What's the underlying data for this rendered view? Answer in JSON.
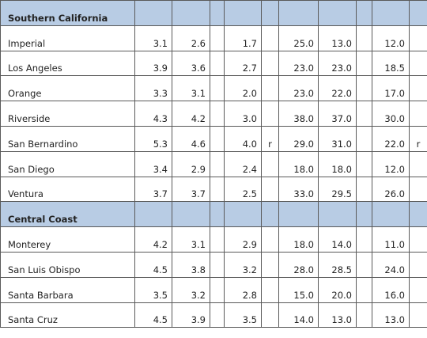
{
  "sections": [
    {
      "title": "Southern California",
      "rows": [
        {
          "name": "Imperial",
          "cells": [
            "3.1",
            "2.6",
            "1.7",
            "25.0",
            "13.0",
            "12.0"
          ]
        },
        {
          "name": "Los Angeles",
          "cells": [
            "3.9",
            "3.6",
            "2.7",
            "23.0",
            "23.0",
            "18.5"
          ]
        },
        {
          "name": "Orange",
          "cells": [
            "3.3",
            "3.1",
            "2.0",
            "23.0",
            "22.0",
            "17.0"
          ]
        },
        {
          "name": "Riverside",
          "cells": [
            "4.3",
            "4.2",
            "3.0",
            "38.0",
            "37.0",
            "30.0"
          ]
        },
        {
          "name": "San Bernardino",
          "cells": [
            "5.3",
            "4.6",
            "4.0",
            "29.0",
            "31.0",
            "22.0"
          ],
          "flags": [
            "r",
            "r"
          ]
        },
        {
          "name": "San Diego",
          "cells": [
            "3.4",
            "2.9",
            "2.4",
            "18.0",
            "18.0",
            "12.0"
          ]
        },
        {
          "name": "Ventura",
          "cells": [
            "3.7",
            "3.7",
            "2.5",
            "33.0",
            "29.5",
            "26.0"
          ]
        }
      ]
    },
    {
      "title": "Central Coast",
      "rows": [
        {
          "name": "Monterey",
          "cells": [
            "4.2",
            "3.1",
            "2.9",
            "18.0",
            "14.0",
            "11.0"
          ]
        },
        {
          "name": "San Luis Obispo",
          "cells": [
            "4.5",
            "3.8",
            "3.2",
            "28.0",
            "28.5",
            "24.0"
          ]
        },
        {
          "name": "Santa Barbara",
          "cells": [
            "3.5",
            "3.2",
            "2.8",
            "15.0",
            "20.0",
            "16.0"
          ]
        },
        {
          "name": "Santa Cruz",
          "cells": [
            "4.5",
            "3.9",
            "3.5",
            "14.0",
            "13.0",
            "13.0"
          ]
        }
      ]
    }
  ]
}
